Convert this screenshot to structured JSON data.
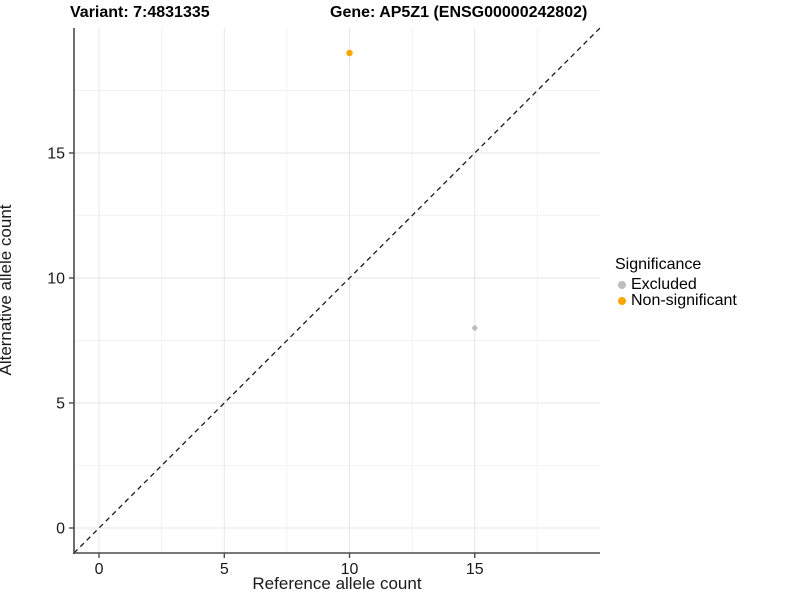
{
  "chart_data": {
    "type": "scatter",
    "titles": {
      "variant": "Variant: 7:4831335",
      "gene": "Gene: AP5Z1 (ENSG00000242802)"
    },
    "xlabel": "Reference allele count",
    "ylabel": "Alternative allele count",
    "xlim": [
      -1,
      20
    ],
    "ylim": [
      -1,
      20
    ],
    "x_ticks": [
      0,
      5,
      10,
      15
    ],
    "y_ticks": [
      0,
      5,
      10,
      15
    ],
    "x_minor_ticks": [
      2.5,
      7.5,
      12.5,
      17.5
    ],
    "y_minor_ticks": [
      2.5,
      7.5,
      12.5,
      17.5
    ],
    "grid": "major+minor",
    "identity_line": {
      "from": [
        -1,
        -1
      ],
      "to": [
        20,
        20
      ],
      "style": "dashed",
      "color": "#1a1a1a"
    },
    "points": [
      {
        "x": 10,
        "y": 19,
        "significance": "Non-significant",
        "color": "#FFA500",
        "radius": 3.2
      },
      {
        "x": 15,
        "y": 8,
        "significance": "Excluded",
        "color": "#BEBEBE",
        "radius": 2.7
      }
    ],
    "legend": {
      "title": "Significance",
      "position": "right",
      "entries": [
        {
          "label": "Excluded",
          "color": "#BEBEBE"
        },
        {
          "label": "Non-significant",
          "color": "#FFA500"
        }
      ]
    },
    "colors": {
      "major_grid": "#e6e6e6",
      "minor_grid": "#f2f2f2",
      "axis_line": "#4a4a4a",
      "background": "#ffffff"
    }
  }
}
